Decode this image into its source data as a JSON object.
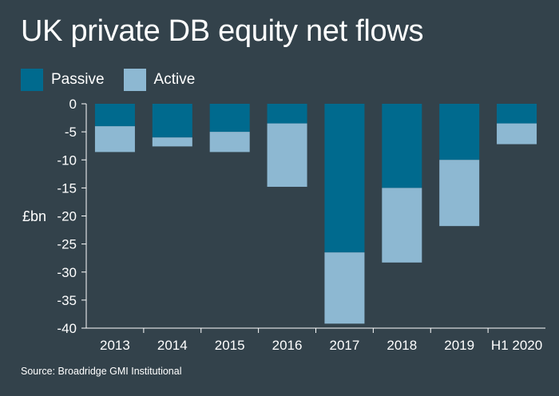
{
  "title": "UK private DB equity net flows",
  "legend": [
    {
      "label": "Passive",
      "color": "#006a8e"
    },
    {
      "label": "Active",
      "color": "#8db8d2"
    }
  ],
  "source": "Source: Broadridge GMI Institutional",
  "chart_data": {
    "type": "bar",
    "stacked": true,
    "categories": [
      "2013",
      "2014",
      "2015",
      "2016",
      "2017",
      "2018",
      "2019",
      "H1 2020"
    ],
    "series": [
      {
        "name": "Passive",
        "color": "#006a8e",
        "values": [
          -4.0,
          -6.0,
          -5.0,
          -3.5,
          -26.5,
          -15.0,
          -10.0,
          -3.5
        ]
      },
      {
        "name": "Active",
        "color": "#8db8d2",
        "values": [
          -4.6,
          -1.6,
          -3.6,
          -11.3,
          -12.7,
          -13.3,
          -11.8,
          -3.7
        ]
      }
    ],
    "ylabel": "£bn",
    "ylim": [
      -40,
      0
    ],
    "yticks": [
      0,
      -5,
      -10,
      -15,
      -20,
      -25,
      -30,
      -35,
      -40
    ],
    "grid": false,
    "legend_position": "top-left"
  }
}
